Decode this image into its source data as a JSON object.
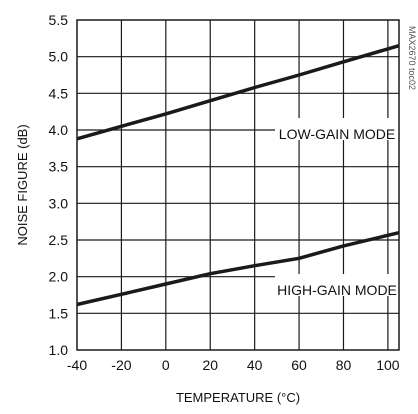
{
  "chart_data": {
    "type": "line",
    "title": "",
    "xlabel": "TEMPERATURE (°C)",
    "ylabel": "NOISE FIGURE (dB)",
    "xlim": [
      -40,
      105
    ],
    "ylim": [
      1.0,
      5.5
    ],
    "x_ticks": [
      "-40",
      "-20",
      "0",
      "20",
      "40",
      "60",
      "80",
      "100"
    ],
    "y_ticks": [
      "1.0",
      "1.5",
      "2.0",
      "2.5",
      "3.0",
      "3.5",
      "4.0",
      "4.5",
      "5.0",
      "5.5"
    ],
    "grid": true,
    "series": [
      {
        "name": "LOW-GAIN MODE",
        "x": [
          -40,
          -20,
          0,
          20,
          40,
          60,
          80,
          105
        ],
        "y": [
          3.88,
          4.05,
          4.22,
          4.4,
          4.58,
          4.75,
          4.93,
          5.15
        ]
      },
      {
        "name": "HIGH-GAIN MODE",
        "x": [
          -40,
          -20,
          0,
          20,
          40,
          60,
          80,
          105
        ],
        "y": [
          1.62,
          1.76,
          1.9,
          2.04,
          2.15,
          2.25,
          2.42,
          2.6
        ]
      }
    ],
    "watermark": "MAX2670 toc02",
    "colors": {
      "line": "#1a1a1a",
      "grid": "#1a1a1a",
      "background": "#ffffff"
    }
  }
}
